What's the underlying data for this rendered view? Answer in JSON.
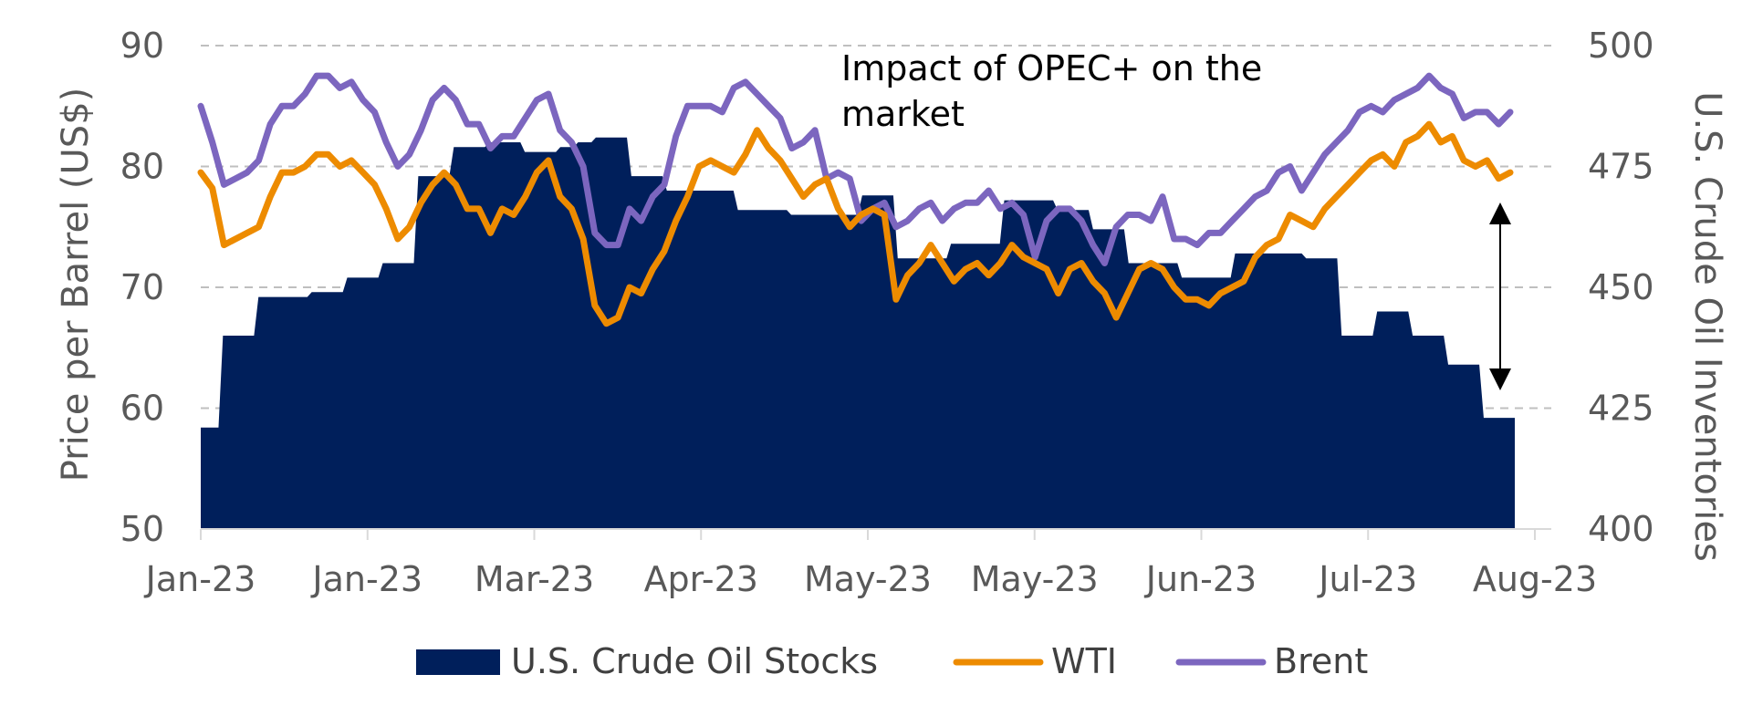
{
  "chart_data": {
    "type": "line+area",
    "title": "",
    "annotation": "Impact of OPEC+ on the market",
    "annotation_lines": [
      "Impact of OPEC+ on the",
      "market"
    ],
    "ylabel": "Price per Barrel (US$)",
    "y2label": "U.S. Crude Oil Inventories",
    "ylim": [
      50,
      90
    ],
    "y2lim": [
      400,
      500
    ],
    "yticks": [
      "50",
      "60",
      "70",
      "80",
      "90"
    ],
    "y2ticks": [
      "400",
      "425",
      "450",
      "475",
      "500"
    ],
    "xticks": [
      "Jan-23",
      "Jan-23",
      "Mar-23",
      "Apr-23",
      "May-23",
      "May-23",
      "Jun-23",
      "Jul-23",
      "Aug-23"
    ],
    "grid": "horizontal dashed",
    "legend_position": "bottom",
    "legend": [
      "U.S. Crude Oil Stocks",
      "WTI",
      "Brent"
    ],
    "colors": {
      "stocks": "#001f5b",
      "wti": "#ed8b00",
      "brent": "#7c66bf",
      "grid": "#bfbfbf",
      "axis_text": "#595959"
    },
    "series": [
      {
        "name": "U.S. Crude Oil Stocks",
        "axis": "right",
        "kind": "area-step",
        "values": [
          421,
          440,
          440,
          448,
          448,
          448,
          449,
          449,
          452,
          452,
          455,
          455,
          473,
          473,
          479,
          479,
          480,
          480,
          478,
          478,
          479,
          480,
          481,
          481,
          473,
          473,
          470,
          470,
          470,
          470,
          466,
          466,
          466,
          465,
          465,
          465,
          465,
          469,
          469,
          456,
          456,
          456,
          459,
          459,
          459,
          468,
          468,
          468,
          466,
          466,
          462,
          462,
          455,
          455,
          455,
          452,
          452,
          452,
          457,
          457,
          457,
          457,
          456,
          456,
          440,
          440,
          445,
          445,
          440,
          440,
          434,
          434,
          423,
          423
        ]
      },
      {
        "name": "WTI",
        "axis": "left",
        "kind": "line",
        "values": [
          79.5,
          78.2,
          73.5,
          74.0,
          74.5,
          75.0,
          77.5,
          79.5,
          79.5,
          80.0,
          81.0,
          81.0,
          80.0,
          80.5,
          79.5,
          78.5,
          76.5,
          74.0,
          75.0,
          77.0,
          78.5,
          79.5,
          78.5,
          76.5,
          76.5,
          74.5,
          76.5,
          76.0,
          77.5,
          79.5,
          80.5,
          77.5,
          76.5,
          74.0,
          68.5,
          67.0,
          67.5,
          70.0,
          69.5,
          71.5,
          73.0,
          75.5,
          77.5,
          80.0,
          80.5,
          80.0,
          79.5,
          81.0,
          83.0,
          81.5,
          80.5,
          79.0,
          77.5,
          78.5,
          79.0,
          76.5,
          75.0,
          76.0,
          76.5,
          76.0,
          69.0,
          71.0,
          72.0,
          73.5,
          72.0,
          70.5,
          71.5,
          72.0,
          71.0,
          72.0,
          73.5,
          72.5,
          72.0,
          71.5,
          69.5,
          71.5,
          72.0,
          70.5,
          69.5,
          67.5,
          69.5,
          71.5,
          72.0,
          71.5,
          70.0,
          69.0,
          69.0,
          68.5,
          69.5,
          70.0,
          70.5,
          72.5,
          73.5,
          74.0,
          76.0,
          75.5,
          75.0,
          76.5,
          77.5,
          78.5,
          79.5,
          80.5,
          81.0,
          80.0,
          82.0,
          82.5,
          83.5,
          82.0,
          82.5,
          80.5,
          80.0,
          80.5,
          79.0,
          79.5
        ]
      },
      {
        "name": "Brent",
        "axis": "left",
        "kind": "line",
        "values": [
          85.0,
          82.0,
          78.5,
          79.0,
          79.5,
          80.5,
          83.5,
          85.0,
          85.0,
          86.0,
          87.5,
          87.5,
          86.5,
          87.0,
          85.5,
          84.5,
          82.0,
          80.0,
          81.0,
          83.0,
          85.5,
          86.5,
          85.5,
          83.5,
          83.5,
          81.5,
          82.5,
          82.5,
          84.0,
          85.5,
          86.0,
          83.0,
          82.0,
          80.0,
          74.5,
          73.5,
          73.5,
          76.5,
          75.5,
          77.5,
          78.5,
          82.5,
          85.0,
          85.0,
          85.0,
          84.5,
          86.5,
          87.0,
          86.0,
          85.0,
          84.0,
          81.5,
          82.0,
          83.0,
          79.0,
          79.5,
          79.0,
          75.5,
          76.5,
          77.0,
          75.0,
          75.5,
          76.5,
          77.0,
          75.5,
          76.5,
          77.0,
          77.0,
          78.0,
          76.5,
          77.0,
          76.0,
          72.5,
          75.5,
          76.5,
          76.5,
          75.5,
          73.5,
          72.0,
          75.0,
          76.0,
          76.0,
          75.5,
          77.5,
          74.0,
          74.0,
          73.5,
          74.5,
          74.5,
          75.5,
          76.5,
          77.5,
          78.0,
          79.5,
          80.0,
          78.0,
          79.5,
          81.0,
          82.0,
          83.0,
          84.5,
          85.0,
          84.5,
          85.5,
          86.0,
          86.5,
          87.5,
          86.5,
          86.0,
          84.0,
          84.5,
          84.5,
          83.5,
          84.5
        ]
      }
    ]
  }
}
